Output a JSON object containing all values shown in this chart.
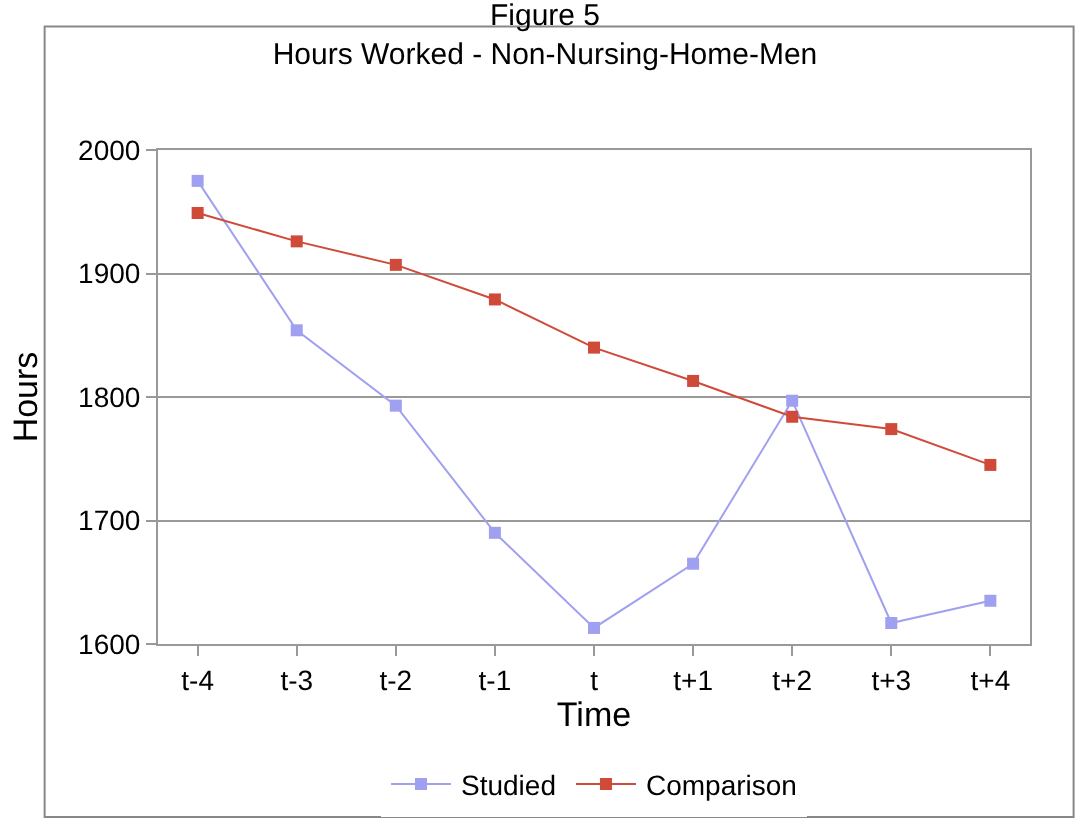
{
  "chart_data": {
    "type": "line",
    "title": "Figure 5",
    "subtitle": "Hours Worked - Non-Nursing-Home-Men",
    "xlabel": "Time",
    "ylabel": "Hours",
    "categories": [
      "t-4",
      "t-3",
      "t-2",
      "t-1",
      "t",
      "t+1",
      "t+2",
      "t+3",
      "t+4"
    ],
    "series": [
      {
        "name": "Studied",
        "color": "#a0a0f0",
        "values": [
          1975,
          1854,
          1793,
          1690,
          1613,
          1665,
          1797,
          1617,
          1635
        ]
      },
      {
        "name": "Comparison",
        "color": "#d04a3a",
        "values": [
          1949,
          1926,
          1907,
          1879,
          1840,
          1813,
          1784,
          1774,
          1745
        ]
      }
    ],
    "ylim": [
      1600,
      2000
    ],
    "yticks": [
      1600,
      1700,
      1800,
      1900,
      2000
    ],
    "grid": "y",
    "legend": "bottom",
    "marker": "square",
    "line_style": "solid"
  }
}
